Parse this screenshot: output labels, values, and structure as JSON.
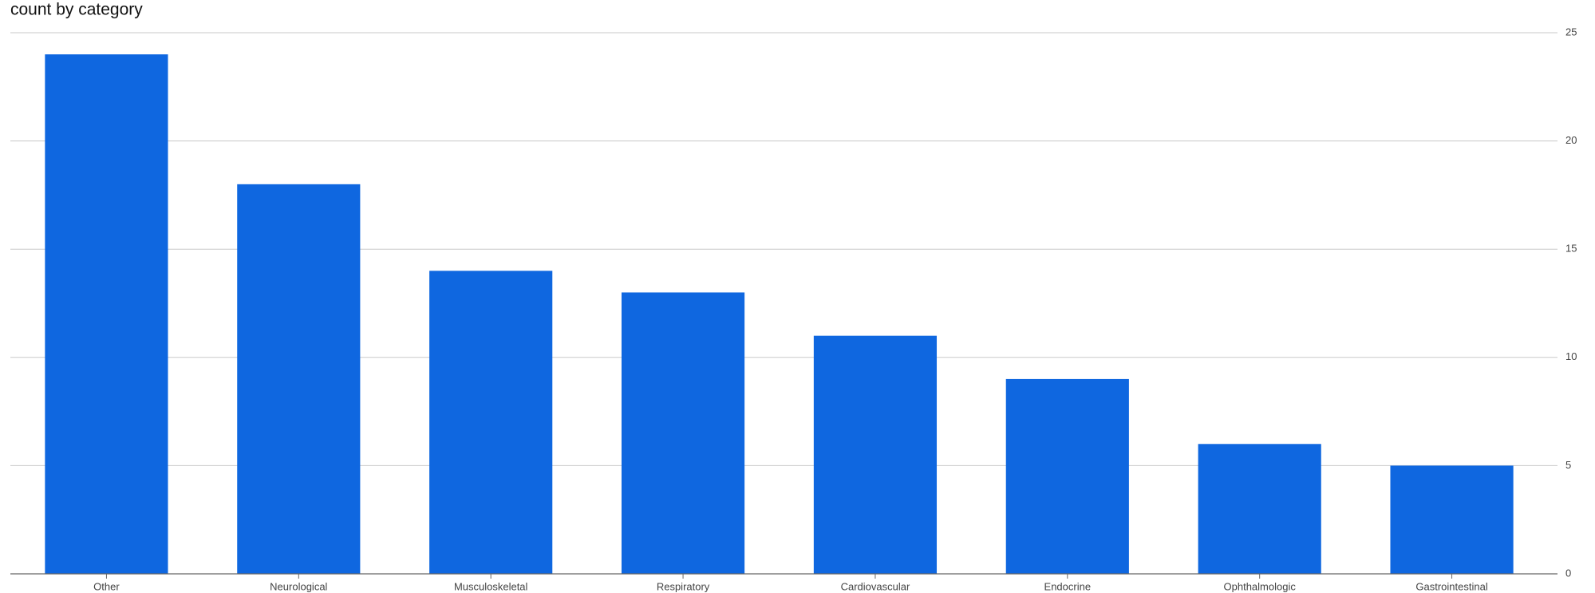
{
  "chart_data": {
    "type": "bar",
    "title": "count by category",
    "categories": [
      "Other",
      "Neurological",
      "Musculoskeletal",
      "Respiratory",
      "Cardiovascular",
      "Endocrine",
      "Ophthalmologic",
      "Gastrointestinal"
    ],
    "values": [
      24,
      18,
      14,
      13,
      11,
      9,
      6,
      5
    ],
    "color": "#0f67e0",
    "ylim": [
      0,
      25
    ],
    "yticks": [
      0,
      5,
      10,
      15,
      20,
      25
    ],
    "grid": true,
    "y_axis_side": "right"
  }
}
